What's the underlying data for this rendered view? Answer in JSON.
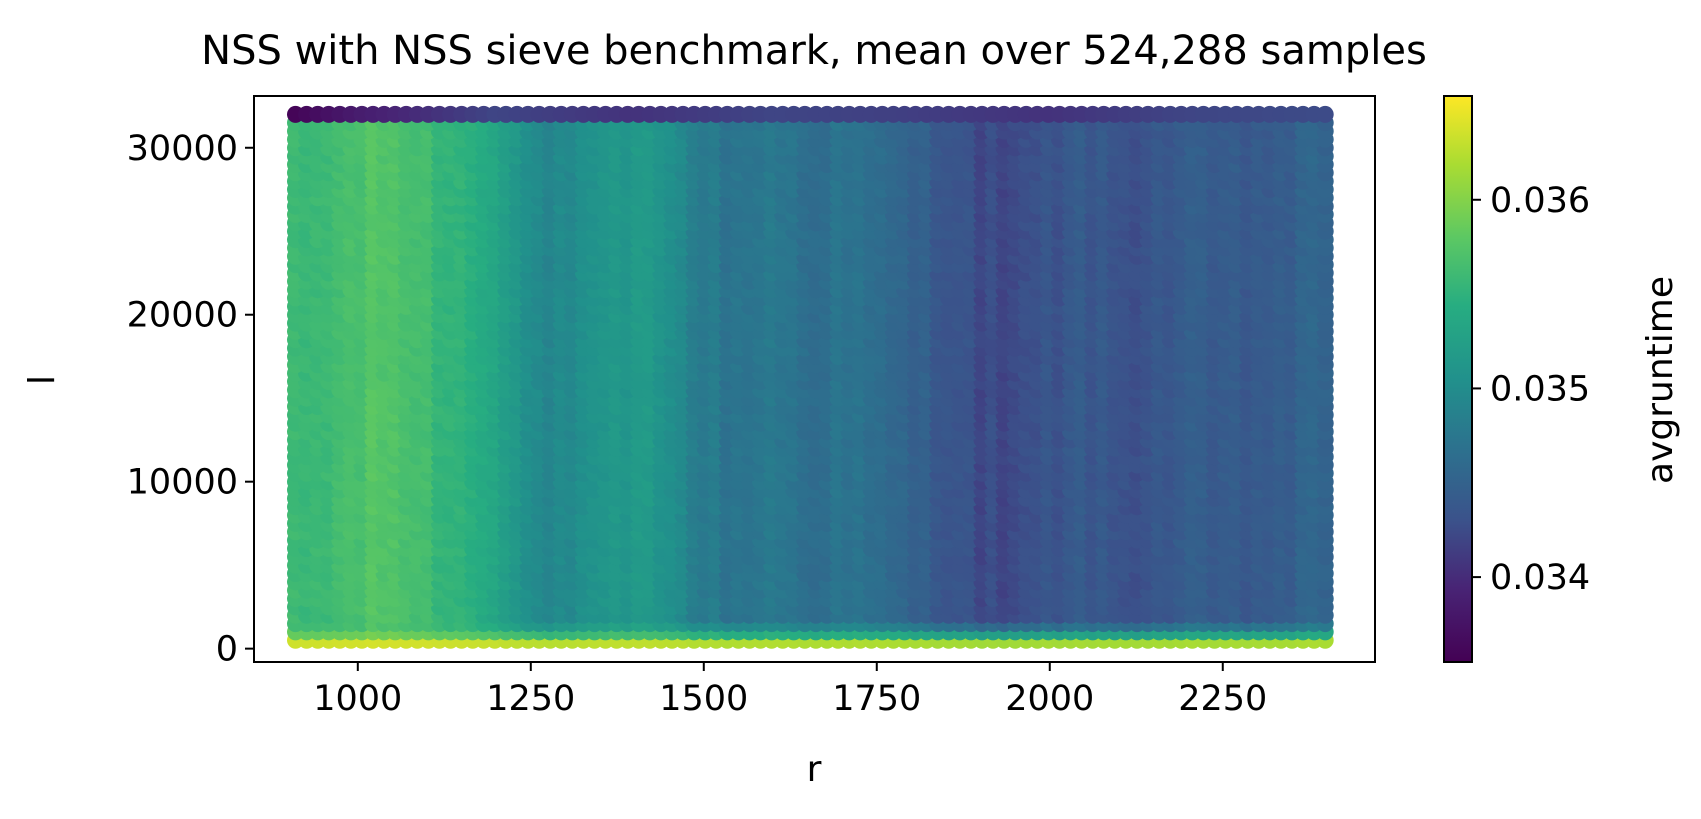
{
  "chart_data": {
    "type": "scatter",
    "title": "NSS with NSS sieve benchmark, mean over 524,288 samples",
    "xlabel": "r",
    "ylabel": "l",
    "xlim": [
      850,
      2470
    ],
    "ylim": [
      -800,
      33100
    ],
    "x_ticks": [
      1000,
      1250,
      1500,
      1750,
      2000,
      2250
    ],
    "x_tick_labels": [
      "1000",
      "1250",
      "1500",
      "1750",
      "2000",
      "2250"
    ],
    "y_ticks": [
      0,
      10000,
      20000,
      30000
    ],
    "y_tick_labels": [
      "0",
      "10000",
      "20000",
      "30000"
    ],
    "x_range": [
      910,
      2410
    ],
    "x_step": 16,
    "y_range": [
      500,
      32000
    ],
    "y_step": 500,
    "colormap": "viridis",
    "colorbar": {
      "label": "avgruntime",
      "min": 0.03355,
      "max": 0.03655,
      "ticks": [
        0.034,
        0.035,
        0.036
      ],
      "tick_labels": [
        "0.034",
        "0.035",
        "0.036"
      ]
    },
    "grid": false,
    "column_profile": [
      {
        "r": 910,
        "value": 0.03555
      },
      {
        "r": 960,
        "value": 0.0356
      },
      {
        "r": 1000,
        "value": 0.03568
      },
      {
        "r": 1050,
        "value": 0.03575
      },
      {
        "r": 1100,
        "value": 0.03562
      },
      {
        "r": 1150,
        "value": 0.0355
      },
      {
        "r": 1200,
        "value": 0.0354
      },
      {
        "r": 1250,
        "value": 0.03498
      },
      {
        "r": 1300,
        "value": 0.03492
      },
      {
        "r": 1350,
        "value": 0.03505
      },
      {
        "r": 1400,
        "value": 0.03515
      },
      {
        "r": 1450,
        "value": 0.03512
      },
      {
        "r": 1480,
        "value": 0.03485
      },
      {
        "r": 1550,
        "value": 0.0347
      },
      {
        "r": 1600,
        "value": 0.03478
      },
      {
        "r": 1650,
        "value": 0.03465
      },
      {
        "r": 1700,
        "value": 0.0347
      },
      {
        "r": 1750,
        "value": 0.03462
      },
      {
        "r": 1800,
        "value": 0.0345
      },
      {
        "r": 1850,
        "value": 0.0344
      },
      {
        "r": 1900,
        "value": 0.03425
      },
      {
        "r": 1950,
        "value": 0.0342
      },
      {
        "r": 2000,
        "value": 0.03432
      },
      {
        "r": 2050,
        "value": 0.0344
      },
      {
        "r": 2100,
        "value": 0.0343
      },
      {
        "r": 2150,
        "value": 0.03435
      },
      {
        "r": 2200,
        "value": 0.03442
      },
      {
        "r": 2250,
        "value": 0.03438
      },
      {
        "r": 2300,
        "value": 0.0344
      },
      {
        "r": 2350,
        "value": 0.03445
      },
      {
        "r": 2410,
        "value": 0.03455
      }
    ],
    "bottom_rows": [
      {
        "l": 500,
        "value": 0.03648
      },
      {
        "l": 1000,
        "value": 0.03605
      },
      {
        "l": 1500,
        "value": 0.03565
      }
    ],
    "top_row": [
      {
        "r": 910,
        "value": 0.0336
      },
      {
        "r": 1000,
        "value": 0.03385
      },
      {
        "r": 1200,
        "value": 0.0342
      },
      {
        "r": 1400,
        "value": 0.03405
      },
      {
        "r": 1600,
        "value": 0.0342
      },
      {
        "r": 1800,
        "value": 0.03415
      },
      {
        "r": 2000,
        "value": 0.03405
      },
      {
        "r": 2200,
        "value": 0.0342
      },
      {
        "r": 2410,
        "value": 0.03425
      }
    ]
  }
}
